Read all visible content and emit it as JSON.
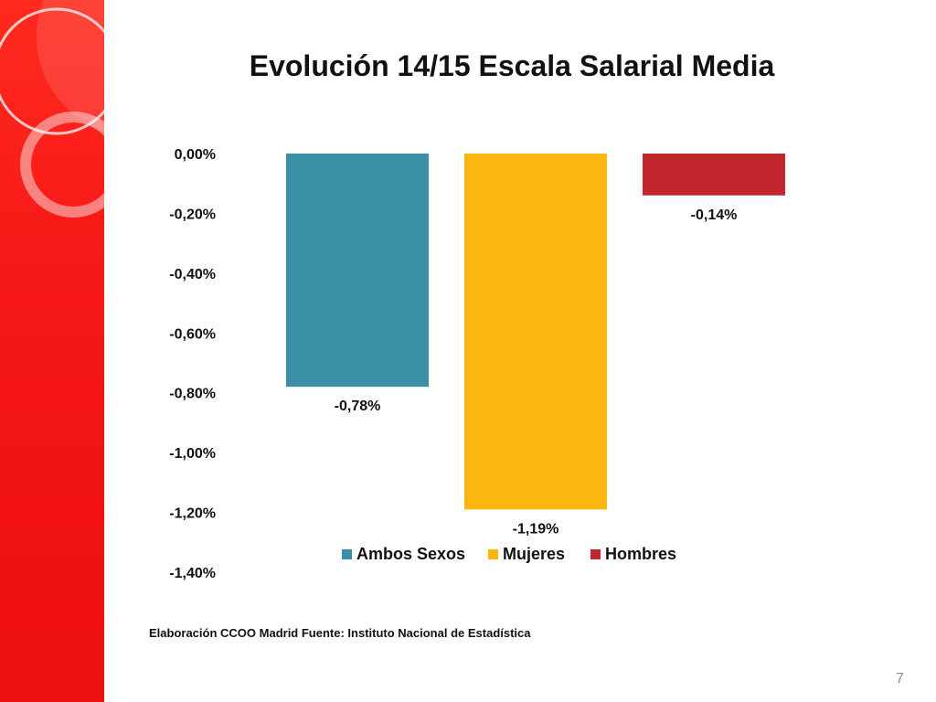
{
  "slide": {
    "title": "Evolución 14/15 Escala Salarial Media",
    "source_note": "Elaboración CCOO Madrid Fuente: Instituto Nacional de Estadística",
    "page_number": "7",
    "accent_color": "#f21a14"
  },
  "chart_data": {
    "type": "bar",
    "title": "Evolución 14/15 Escala Salarial Media",
    "xlabel": "",
    "ylabel": "",
    "ylim": [
      -1.4,
      0
    ],
    "yticks": [
      0,
      -0.2,
      -0.4,
      -0.6,
      -0.8,
      -1.0,
      -1.2,
      -1.4
    ],
    "ytick_labels": [
      "0,00%",
      "-0,20%",
      "-0,40%",
      "-0,60%",
      "-0,80%",
      "-1,00%",
      "-1,20%",
      "-1,40%"
    ],
    "grid": false,
    "legend_position": "bottom",
    "series": [
      {
        "name": "Ambos Sexos",
        "value": -0.78,
        "label": "-0,78%",
        "color": "#3a8fa6"
      },
      {
        "name": "Mujeres",
        "value": -1.19,
        "label": "-1,19%",
        "color": "#fbb710"
      },
      {
        "name": "Hombres",
        "value": -0.14,
        "label": "-0,14%",
        "color": "#c1272d"
      }
    ]
  }
}
